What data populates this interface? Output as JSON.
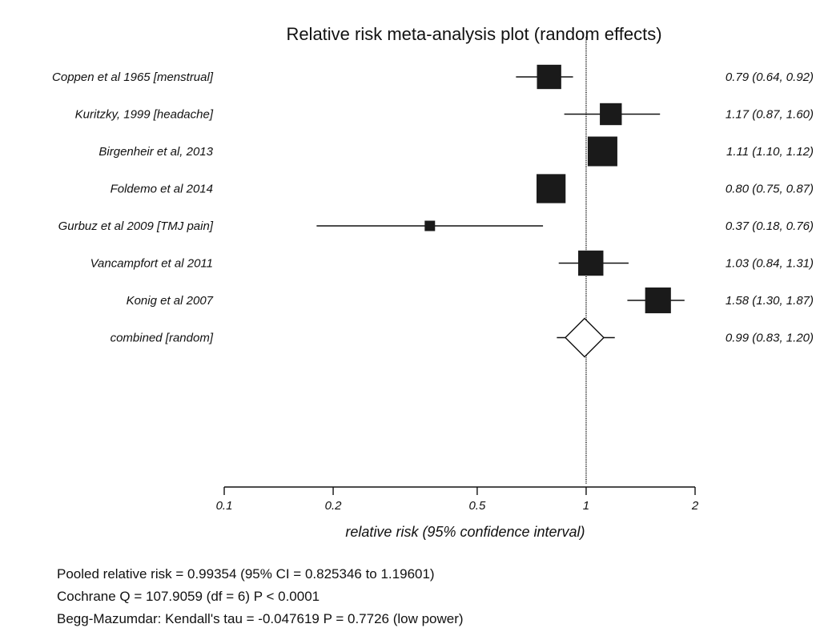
{
  "chart_data": {
    "type": "forest",
    "title": "Relative risk meta-analysis plot (random effects)",
    "xlabel": "relative risk (95% confidence interval)",
    "x_scale": "log",
    "xlim": [
      0.1,
      2
    ],
    "x_ticks": [
      "0.1",
      "0.2",
      "0.5",
      "1",
      "2"
    ],
    "reference_line": 1,
    "studies": [
      {
        "label": "Coppen et al 1965 [menstrual]",
        "rr": 0.79,
        "lo": 0.64,
        "hi": 0.92,
        "text": "0.79 (0.64, 0.92)",
        "weight": 0.82
      },
      {
        "label": "Kuritzky, 1999 [headache]",
        "rr": 1.17,
        "lo": 0.87,
        "hi": 1.6,
        "text": "1.17 (0.87, 1.60)",
        "weight": 0.74
      },
      {
        "label": "Birgenheir et al, 2013",
        "rr": 1.11,
        "lo": 1.1,
        "hi": 1.12,
        "text": "1.11 (1.10, 1.12)",
        "weight": 1.0
      },
      {
        "label": "Foldemo et al 2014",
        "rr": 0.8,
        "lo": 0.75,
        "hi": 0.87,
        "text": "0.80 (0.75, 0.87)",
        "weight": 0.98
      },
      {
        "label": "Gurbuz et al 2009 [TMJ pain]",
        "rr": 0.37,
        "lo": 0.18,
        "hi": 0.76,
        "text": "0.37 (0.18, 0.76)",
        "weight": 0.35
      },
      {
        "label": "Vancampfort et al 2011",
        "rr": 1.03,
        "lo": 0.84,
        "hi": 1.31,
        "text": "1.03 (0.84, 1.31)",
        "weight": 0.85
      },
      {
        "label": "Konig et al 2007",
        "rr": 1.58,
        "lo": 1.3,
        "hi": 1.87,
        "text": "1.58 (1.30, 1.87)",
        "weight": 0.87
      }
    ],
    "combined": {
      "label": "combined [random]",
      "rr": 0.99,
      "lo": 0.83,
      "hi": 1.2,
      "text": "0.99 (0.83, 1.20)"
    }
  },
  "stats": {
    "pooled": "Pooled relative risk = 0.99354 (95% CI = 0.825346 to 1.19601)",
    "cochrane": "Cochrane Q = 107.9059  (df = 6)  P < 0.0001",
    "begg": "Begg-Mazumdar: Kendall's tau = -0.047619  P = 0.7726 (low power)"
  }
}
